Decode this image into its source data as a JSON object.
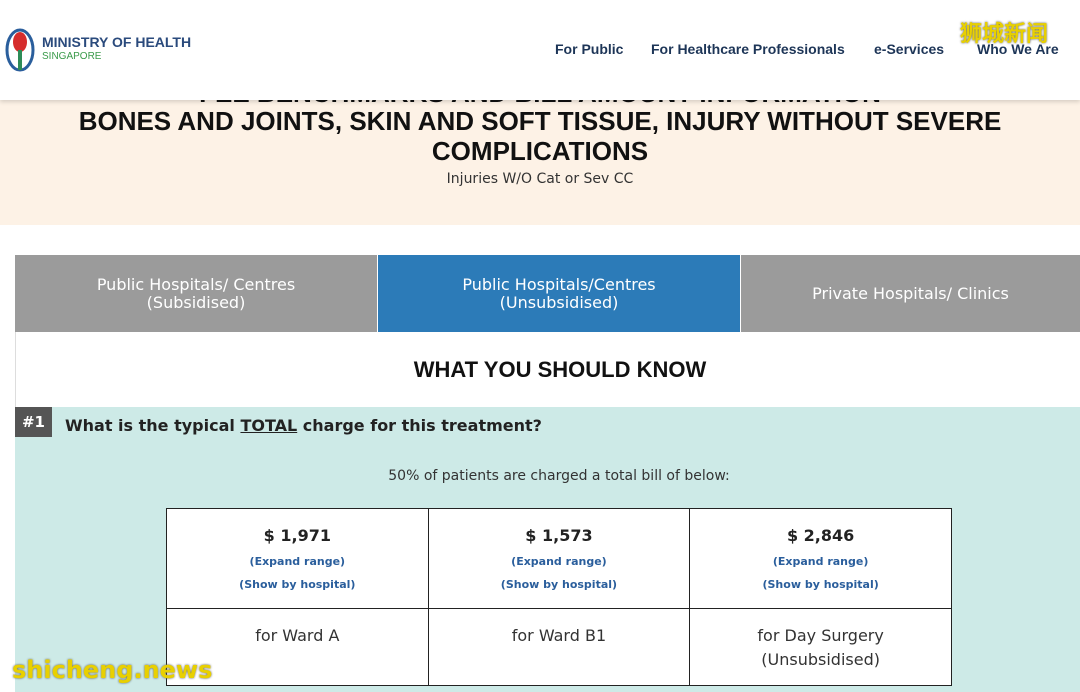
{
  "header": {
    "logo": {
      "name": "MINISTRY OF HEALTH",
      "country": "SINGAPORE"
    },
    "nav": [
      "For Public",
      "For Healthcare Professionals",
      "e-Services",
      "Who We Are"
    ]
  },
  "watermarks": {
    "top": "狮城新闻",
    "bottom": "shicheng.news"
  },
  "banner": {
    "overline": "FEE BENCHMARKS AND BILL AMOUNT INFORMATION",
    "title": "BONES AND JOINTS, SKIN AND SOFT TISSUE, INJURY WITHOUT SEVERE COMPLICATIONS",
    "subtitle": "Injuries W/O Cat or Sev CC"
  },
  "tabs": [
    {
      "line1": "Public Hospitals/ Centres",
      "line2": "(Subsidised)"
    },
    {
      "line1": "Public Hospitals/Centres",
      "line2": "(Unsubsidised)"
    },
    {
      "line1": "Private Hospitals/ Clinics"
    }
  ],
  "section": {
    "heading": "WHAT YOU SHOULD KNOW"
  },
  "question": {
    "number": "#1",
    "before": "What is the typical ",
    "emphasis": "TOTAL",
    "after": " charge for this treatment?",
    "note": "50% of patients are charged a total bill of below:"
  },
  "table": {
    "cells": [
      {
        "amount": "$ 1,971",
        "expand": "(Expand range)",
        "show": "(Show by hospital)",
        "ward": "for Ward A"
      },
      {
        "amount": "$ 1,573",
        "expand": "(Expand range)",
        "show": "(Show by hospital)",
        "ward": "for Ward B1"
      },
      {
        "amount": "$ 2,846",
        "expand": "(Expand range)",
        "show": "(Show by hospital)",
        "ward": "for Day Surgery",
        "ward2": "(Unsubsidised)"
      }
    ]
  }
}
